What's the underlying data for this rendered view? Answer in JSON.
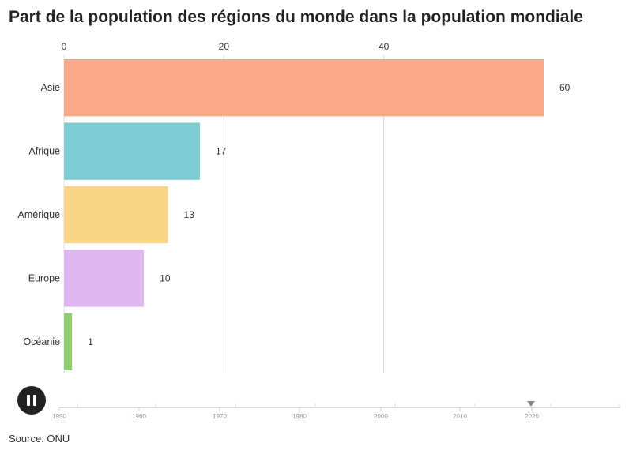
{
  "chart_data": {
    "type": "bar",
    "orientation": "horizontal",
    "title": "Part de la population des régions du monde dans la population mondiale",
    "xlim": [
      0,
      60
    ],
    "x_ticks": [
      0,
      20,
      40
    ],
    "grid": true,
    "categories": [
      "Asie",
      "Afrique",
      "Amérique",
      "Europe",
      "Océanie"
    ],
    "values": [
      60,
      17,
      13,
      10,
      1
    ],
    "value_labels": [
      "60",
      "17",
      "13",
      "10",
      "1"
    ],
    "colors": [
      "#f8a98a",
      "#7dcdd2",
      "#f7d488",
      "#ddb9f0",
      "#8fce6e"
    ]
  },
  "timeline": {
    "years": [
      "1950",
      "1960",
      "1970",
      "1980",
      "2000",
      "2010",
      "2020"
    ],
    "current_year": 2020
  },
  "controls": {
    "play_state": "playing",
    "pause_icon": "pause-icon"
  },
  "source": "Source: ONU"
}
